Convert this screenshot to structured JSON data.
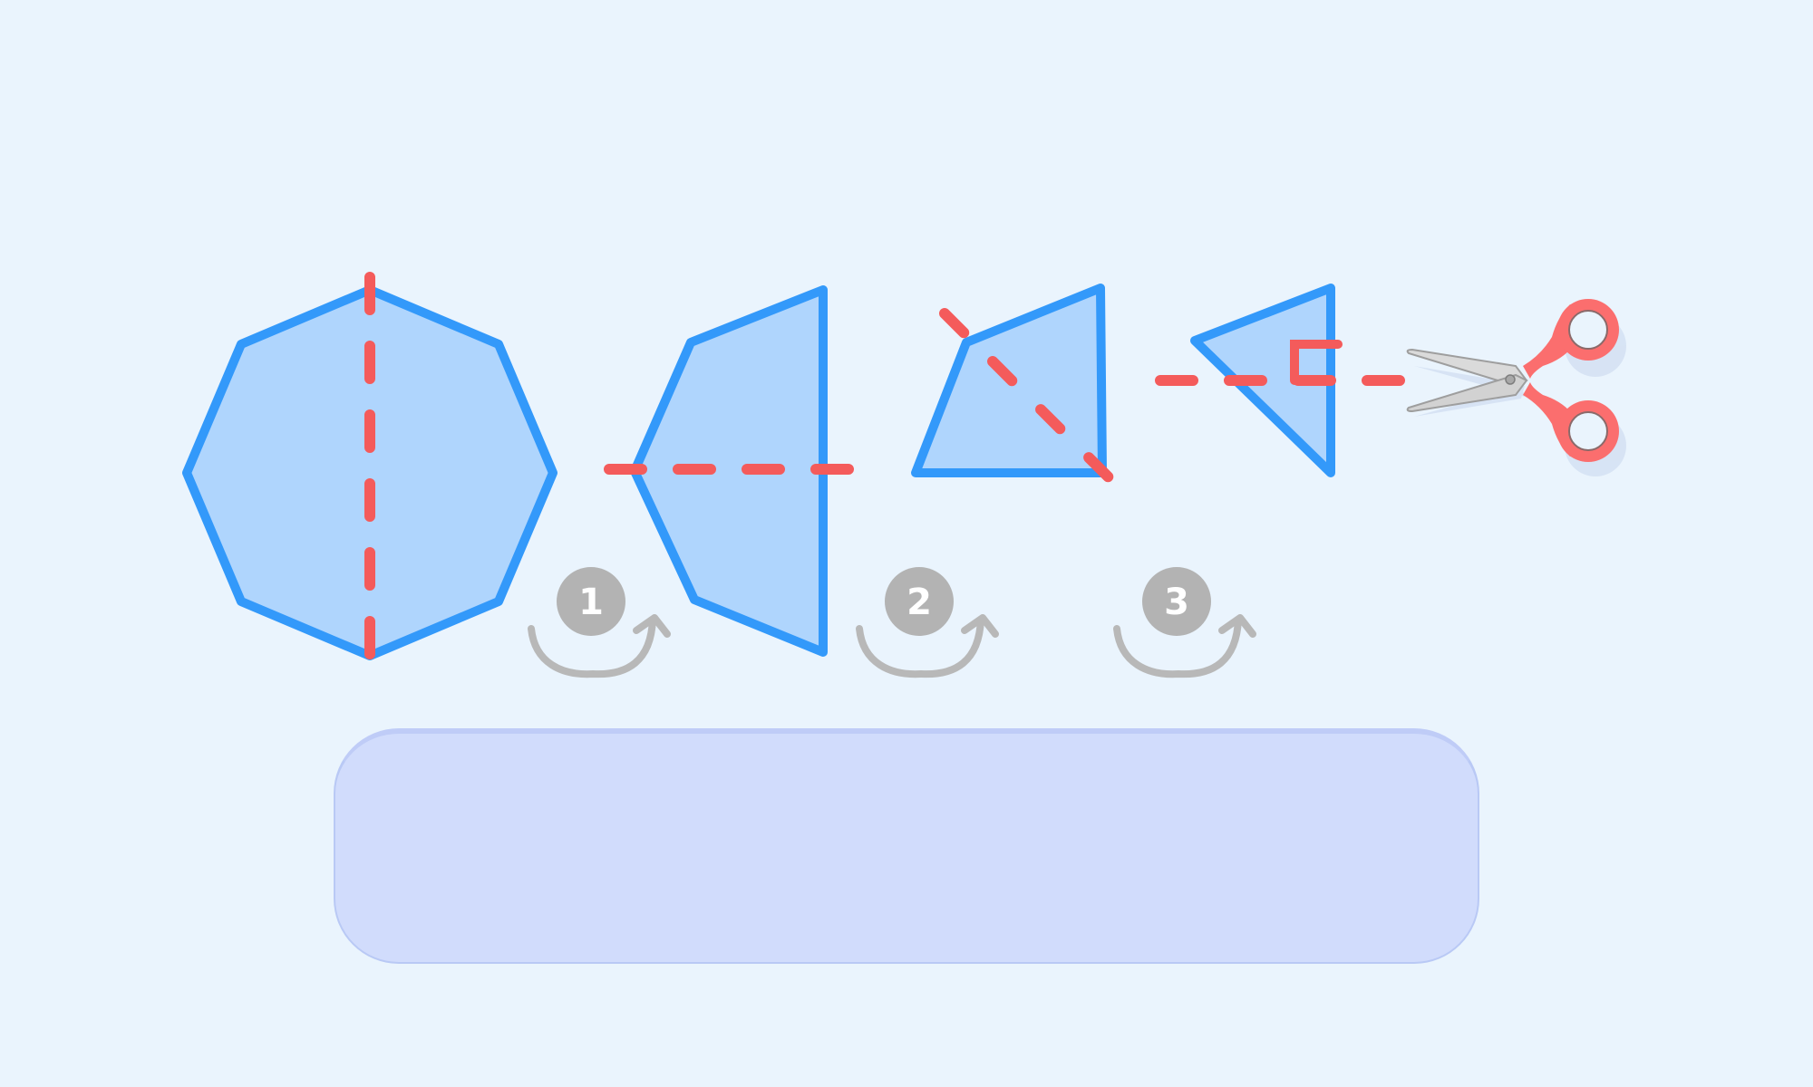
{
  "steps": [
    {
      "number": "1"
    },
    {
      "number": "2"
    },
    {
      "number": "3"
    }
  ],
  "colors": {
    "background": "#EAF4FD",
    "shape_fill": "#AFD5FD",
    "shape_outline": "#3399FA",
    "cut_line": "#F45B5B",
    "step_badge": "#B3B3B3",
    "arrow": "#B8B8B8",
    "answer_box": "#D1DCFC"
  },
  "icons": {
    "scissors": "scissors-icon"
  },
  "answer_box": {
    "value": ""
  }
}
